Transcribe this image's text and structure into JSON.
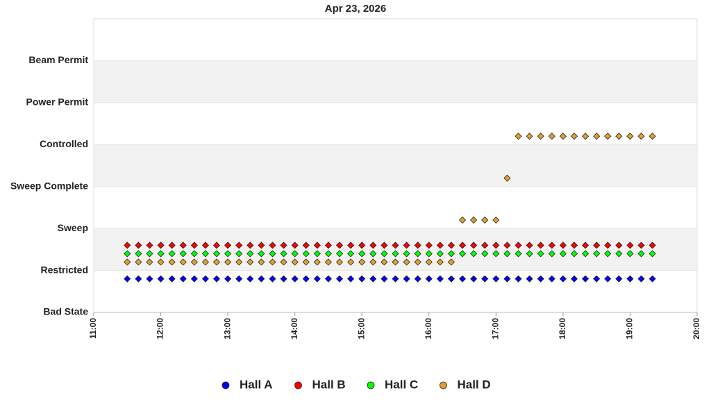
{
  "chart_data": {
    "type": "scatter",
    "title": "Apr 23, 2026",
    "x": [
      690,
      700,
      710,
      720,
      730,
      740,
      750,
      760,
      770,
      780,
      790,
      800,
      810,
      820,
      830,
      840,
      850,
      860,
      870,
      880,
      890,
      900,
      910,
      920,
      930,
      940,
      950,
      960,
      970,
      980,
      990,
      1000,
      1010,
      1020,
      1030,
      1040,
      1050,
      1060,
      1070,
      1080,
      1090,
      1100,
      1110,
      1120,
      1130,
      1140,
      1150,
      1160
    ],
    "xlim": [
      660,
      1200
    ],
    "xticks": [
      {
        "value": 660,
        "label": "11:00"
      },
      {
        "value": 720,
        "label": "12:00"
      },
      {
        "value": 780,
        "label": "13:00"
      },
      {
        "value": 840,
        "label": "14:00"
      },
      {
        "value": 900,
        "label": "15:00"
      },
      {
        "value": 960,
        "label": "16:00"
      },
      {
        "value": 1020,
        "label": "17:00"
      },
      {
        "value": 1080,
        "label": "18:00"
      },
      {
        "value": 1140,
        "label": "19:00"
      },
      {
        "value": 1200,
        "label": "20:00"
      }
    ],
    "ylim": [
      0,
      7
    ],
    "yticks": [
      {
        "value": 0,
        "label": "Bad State"
      },
      {
        "value": 1,
        "label": "Restricted"
      },
      {
        "value": 2,
        "label": "Sweep"
      },
      {
        "value": 3,
        "label": "Sweep Complete"
      },
      {
        "value": 4,
        "label": "Controlled"
      },
      {
        "value": 5,
        "label": "Power Permit"
      },
      {
        "value": 6,
        "label": "Beam Permit"
      }
    ],
    "band_color": "#f2f2f2",
    "legend": "bottom",
    "series": [
      {
        "name": "Hall A",
        "color": "#0000ff",
        "values": [
          0.8,
          0.8,
          0.8,
          0.8,
          0.8,
          0.8,
          0.8,
          0.8,
          0.8,
          0.8,
          0.8,
          0.8,
          0.8,
          0.8,
          0.8,
          0.8,
          0.8,
          0.8,
          0.8,
          0.8,
          0.8,
          0.8,
          0.8,
          0.8,
          0.8,
          0.8,
          0.8,
          0.8,
          0.8,
          0.8,
          0.8,
          0.8,
          0.8,
          0.8,
          0.8,
          0.8,
          0.8,
          0.8,
          0.8,
          0.8,
          0.8,
          0.8,
          0.8,
          0.8,
          0.8,
          0.8,
          0.8,
          0.8
        ]
      },
      {
        "name": "Hall B",
        "color": "#ff0000",
        "values": [
          1.6,
          1.6,
          1.6,
          1.6,
          1.6,
          1.6,
          1.6,
          1.6,
          1.6,
          1.6,
          1.6,
          1.6,
          1.6,
          1.6,
          1.6,
          1.6,
          1.6,
          1.6,
          1.6,
          1.6,
          1.6,
          1.6,
          1.6,
          1.6,
          1.6,
          1.6,
          1.6,
          1.6,
          1.6,
          1.6,
          1.6,
          1.6,
          1.6,
          1.6,
          1.6,
          1.6,
          1.6,
          1.6,
          1.6,
          1.6,
          1.6,
          1.6,
          1.6,
          1.6,
          1.6,
          1.6,
          1.6,
          1.6
        ]
      },
      {
        "name": "Hall C",
        "color": "#00ff00",
        "values": [
          1.4,
          1.4,
          1.4,
          1.4,
          1.4,
          1.4,
          1.4,
          1.4,
          1.4,
          1.4,
          1.4,
          1.4,
          1.4,
          1.4,
          1.4,
          1.4,
          1.4,
          1.4,
          1.4,
          1.4,
          1.4,
          1.4,
          1.4,
          1.4,
          1.4,
          1.4,
          1.4,
          1.4,
          1.4,
          1.4,
          1.4,
          1.4,
          1.4,
          1.4,
          1.4,
          1.4,
          1.4,
          1.4,
          1.4,
          1.4,
          1.4,
          1.4,
          1.4,
          1.4,
          1.4,
          1.4,
          1.4,
          1.4
        ]
      },
      {
        "name": "Hall D",
        "color": "#e0a030",
        "values": [
          1.2,
          1.2,
          1.2,
          1.2,
          1.2,
          1.2,
          1.2,
          1.2,
          1.2,
          1.2,
          1.2,
          1.2,
          1.2,
          1.2,
          1.2,
          1.2,
          1.2,
          1.2,
          1.2,
          1.2,
          1.2,
          1.2,
          1.2,
          1.2,
          1.2,
          1.2,
          1.2,
          1.2,
          1.2,
          1.2,
          2.2,
          2.2,
          2.2,
          2.2,
          3.2,
          4.2,
          4.2,
          4.2,
          4.2,
          4.2,
          4.2,
          4.2,
          4.2,
          4.2,
          4.2,
          4.2,
          4.2,
          4.2
        ]
      }
    ]
  }
}
